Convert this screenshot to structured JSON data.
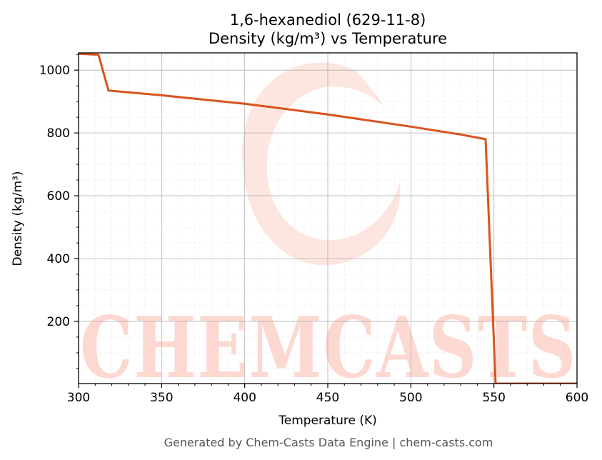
{
  "chart_data": {
    "type": "line",
    "title_line1": "1,6-hexanediol (629-11-8)",
    "title_line2": "Density (kg/m³) vs Temperature",
    "xlabel": "Temperature (K)",
    "ylabel": "Density (kg/m³)",
    "xlim": [
      300,
      600
    ],
    "ylim": [
      2,
      1055
    ],
    "xticks": [
      300,
      350,
      400,
      450,
      500,
      550,
      600
    ],
    "yticks": [
      200,
      400,
      600,
      800,
      1000
    ],
    "grid": true,
    "series": [
      {
        "color": "#d9531e",
        "x": [
          300,
          312,
          318,
          350,
          400,
          450,
          500,
          530,
          545,
          551,
          560,
          600
        ],
        "y": [
          1052,
          1049,
          935,
          920,
          893,
          859,
          820,
          795,
          780,
          2,
          2,
          2
        ]
      }
    ]
  },
  "watermark": {
    "text": "CHEMCASTS",
    "color": "#fdd8d0"
  },
  "footer": "Generated by Chem-Casts Data Engine | chem-casts.com"
}
